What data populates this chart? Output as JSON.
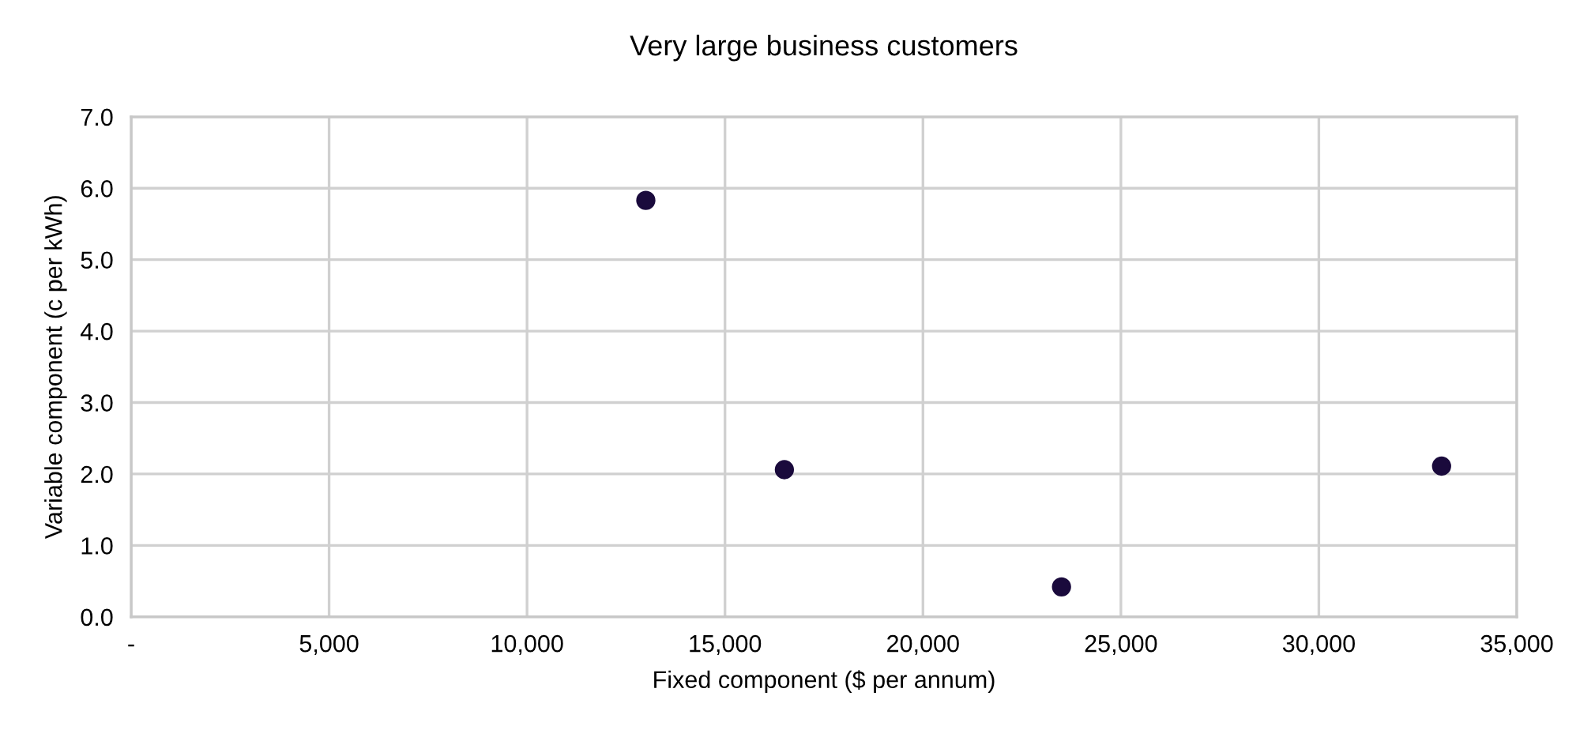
{
  "chart_data": {
    "type": "scatter",
    "title": "Very large business customers",
    "xlabel": "Fixed component ($ per annum)",
    "ylabel": "Variable component (c per kWh)",
    "x": [
      13000,
      16500,
      23500,
      33100
    ],
    "series": [
      {
        "color": "#1a0a3c",
        "values": [
          5.83,
          2.06,
          0.42,
          2.11
        ]
      }
    ],
    "xlim": [
      0,
      35000
    ],
    "xticks": [
      {
        "value": 0,
        "label": "-"
      },
      {
        "value": 5000,
        "label": "5,000"
      },
      {
        "value": 10000,
        "label": "10,000"
      },
      {
        "value": 15000,
        "label": "15,000"
      },
      {
        "value": 20000,
        "label": "20,000"
      },
      {
        "value": 25000,
        "label": "25,000"
      },
      {
        "value": 30000,
        "label": "30,000"
      },
      {
        "value": 35000,
        "label": "35,000"
      }
    ],
    "ylim": [
      0,
      7
    ],
    "yticks": [
      {
        "value": 0,
        "label": "0.0"
      },
      {
        "value": 1,
        "label": "1.0"
      },
      {
        "value": 2,
        "label": "2.0"
      },
      {
        "value": 3,
        "label": "3.0"
      },
      {
        "value": 4,
        "label": "4.0"
      },
      {
        "value": 5,
        "label": "5.0"
      },
      {
        "value": 6,
        "label": "6.0"
      },
      {
        "value": 7,
        "label": "7.0"
      }
    ],
    "grid": true,
    "legend": false,
    "marker": "circle"
  }
}
